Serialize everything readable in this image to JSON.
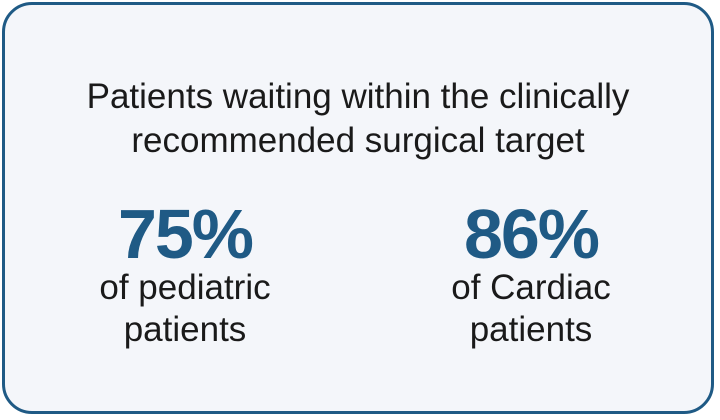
{
  "headline": {
    "line1": "Patients waiting within the clinically",
    "line2": "recommended surgical target"
  },
  "stats": [
    {
      "value": "75%",
      "desc_line1": "of pediatric",
      "desc_line2": "patients"
    },
    {
      "value": "86%",
      "desc_line1": "of Cardiac",
      "desc_line2": "patients"
    }
  ],
  "colors": {
    "accent": "#1f5a85",
    "background": "#f4f6fa",
    "text": "#1a1a1a"
  }
}
